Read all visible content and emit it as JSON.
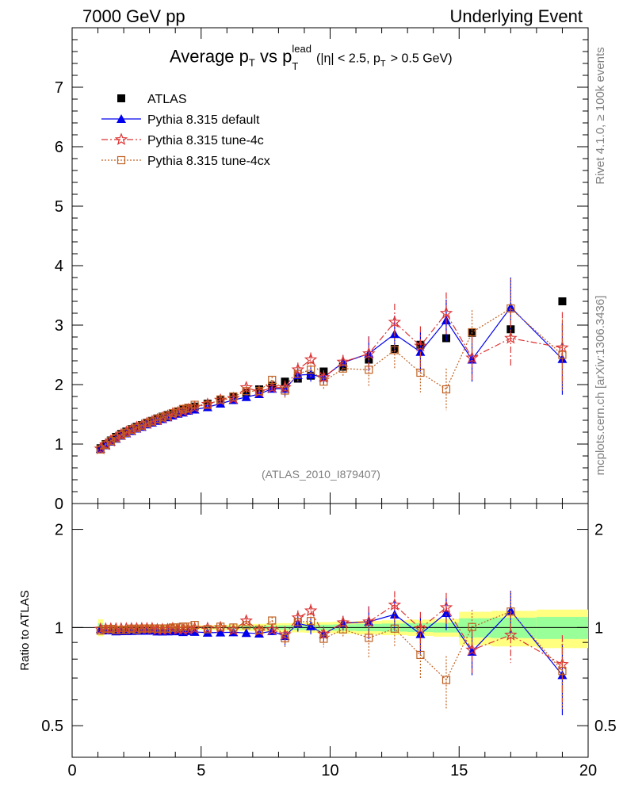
{
  "header": {
    "energy_label": "7000 GeV pp",
    "process_label": "Underlying Event"
  },
  "side_labels": {
    "rivet": "Rivet 4.1.0, ≥ 100k events",
    "mcplots": "mcplots.cern.ch [arXiv:1306.3436]"
  },
  "chart_data": {
    "type": "scatter",
    "title": "Average p_T vs p_T^lead (|η| < 2.5, p_T > 0.5 GeV)",
    "title_parts": {
      "avg": "Average p",
      "vs": "vs p",
      "sub_t": "T",
      "sup_lead": "lead",
      "cut_a": "(|η| < 2.5, p",
      "cut_b": "> 0.5 GeV)"
    },
    "analysis_id": "(ATLAS_2010_I879407)",
    "xlabel": "",
    "ylabel_main": "",
    "ylabel_ratio": "Ratio to ATLAS",
    "xlim": [
      0,
      20
    ],
    "ylim_main": [
      0,
      8
    ],
    "ylim_ratio": [
      0.4,
      2.4
    ],
    "x_ticks": [
      "0",
      "5",
      "10",
      "15",
      "20"
    ],
    "y_ticks_main": [
      "0",
      "1",
      "2",
      "3",
      "4",
      "5",
      "6",
      "7"
    ],
    "y_ticks_ratio": [
      "0.5",
      "1",
      "2"
    ],
    "x": [
      1.1,
      1.3,
      1.5,
      1.7,
      1.9,
      2.1,
      2.3,
      2.5,
      2.7,
      2.9,
      3.1,
      3.3,
      3.5,
      3.7,
      3.9,
      4.1,
      4.3,
      4.5,
      4.75,
      5.25,
      5.75,
      6.25,
      6.75,
      7.25,
      7.75,
      8.25,
      8.75,
      9.25,
      9.75,
      10.5,
      11.5,
      12.5,
      13.5,
      14.5,
      15.5,
      17.0,
      19.0
    ],
    "series": [
      {
        "name": "ATLAS",
        "color": "#000000",
        "values": [
          0.93,
          1.0,
          1.06,
          1.12,
          1.17,
          1.21,
          1.25,
          1.29,
          1.32,
          1.36,
          1.39,
          1.43,
          1.46,
          1.49,
          1.52,
          1.55,
          1.58,
          1.6,
          1.63,
          1.68,
          1.74,
          1.8,
          1.86,
          1.92,
          1.98,
          2.05,
          2.1,
          2.15,
          2.22,
          2.3,
          2.42,
          2.6,
          2.67,
          2.78,
          2.87,
          2.93,
          3.4
        ]
      },
      {
        "name": "Pythia 8.315 default",
        "color": "#0000ee",
        "values": [
          0.92,
          0.98,
          1.04,
          1.09,
          1.14,
          1.18,
          1.22,
          1.26,
          1.29,
          1.33,
          1.36,
          1.39,
          1.42,
          1.45,
          1.48,
          1.51,
          1.53,
          1.56,
          1.58,
          1.62,
          1.68,
          1.74,
          1.79,
          1.84,
          1.93,
          1.93,
          2.16,
          2.17,
          2.12,
          2.37,
          2.52,
          2.85,
          2.55,
          3.08,
          2.42,
          3.3,
          2.43
        ]
      },
      {
        "name": "Pythia 8.315 tune-4c",
        "color": "#dd3333",
        "values": [
          0.92,
          0.99,
          1.05,
          1.11,
          1.16,
          1.2,
          1.24,
          1.28,
          1.31,
          1.35,
          1.38,
          1.41,
          1.44,
          1.47,
          1.51,
          1.53,
          1.56,
          1.58,
          1.62,
          1.67,
          1.74,
          1.77,
          1.95,
          1.88,
          1.95,
          1.95,
          2.25,
          2.42,
          2.12,
          2.38,
          2.52,
          3.05,
          2.65,
          3.2,
          2.45,
          2.78,
          2.62
        ]
      },
      {
        "name": "Pythia 8.315 tune-4cx",
        "color": "#c06020",
        "values": [
          0.91,
          0.99,
          1.05,
          1.1,
          1.15,
          1.19,
          1.24,
          1.27,
          1.31,
          1.35,
          1.38,
          1.42,
          1.45,
          1.48,
          1.52,
          1.55,
          1.59,
          1.61,
          1.66,
          1.66,
          1.75,
          1.8,
          1.89,
          1.89,
          2.08,
          1.9,
          2.18,
          2.25,
          2.05,
          2.27,
          2.25,
          2.58,
          2.2,
          1.92,
          2.88,
          3.28,
          2.5
        ]
      }
    ],
    "uncertainty_bands": {
      "stat_color": "#99ff99",
      "total_color": "#ffff80"
    }
  }
}
